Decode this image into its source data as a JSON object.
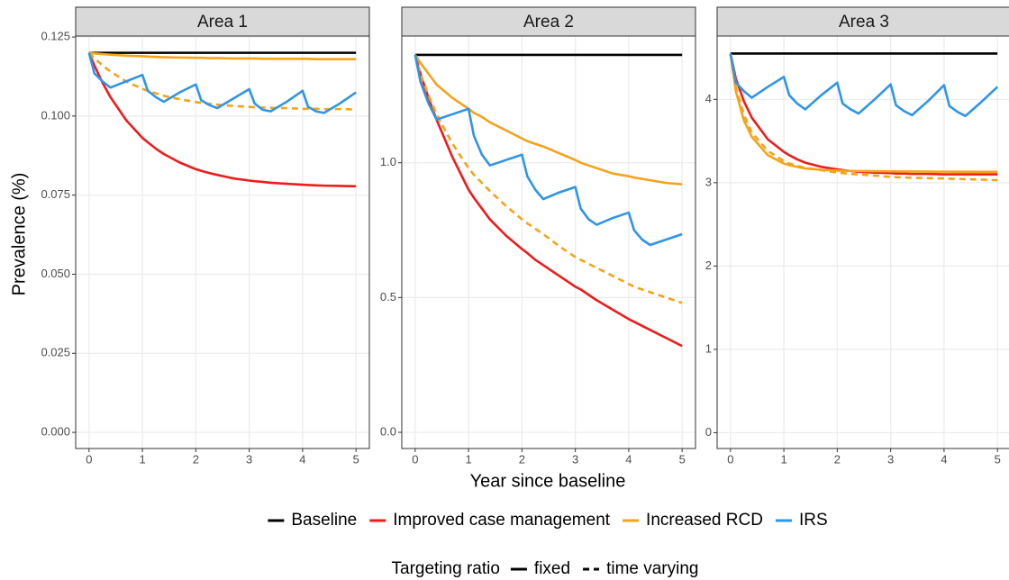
{
  "chart_data": [
    {
      "type": "line",
      "title": "Area 1",
      "x": [
        0,
        0.1,
        0.25,
        0.4,
        0.7,
        1,
        1.1,
        1.25,
        1.4,
        1.7,
        2,
        2.1,
        2.25,
        2.4,
        2.7,
        3,
        3.1,
        3.25,
        3.4,
        3.7,
        4,
        4.1,
        4.25,
        4.4,
        4.7,
        5
      ],
      "xlim": [
        -0.25,
        5.25
      ],
      "xticks": [
        0,
        1,
        2,
        3,
        4,
        5
      ],
      "ylim": [
        -0.0051,
        0.1253
      ],
      "yticks": [
        {
          "value": 0,
          "label": "0.000"
        },
        {
          "value": 0.025,
          "label": "0.025"
        },
        {
          "value": 0.05,
          "label": "0.050"
        },
        {
          "value": 0.075,
          "label": "0.075"
        },
        {
          "value": 0.1,
          "label": "0.100"
        },
        {
          "value": 0.125,
          "label": "0.125"
        }
      ],
      "grid": true,
      "series": [
        {
          "name": "Baseline",
          "linetype": "fixed",
          "color": "#000000",
          "values": [
            0.12,
            0.12,
            0.12,
            0.12,
            0.12,
            0.12,
            0.12,
            0.12,
            0.12,
            0.12,
            0.12,
            0.12,
            0.12,
            0.12,
            0.12,
            0.12,
            0.12,
            0.12,
            0.12,
            0.12,
            0.12,
            0.12,
            0.12,
            0.12,
            0.12,
            0.12
          ]
        },
        {
          "name": "Improved case management",
          "linetype": "fixed",
          "color": "#ee1c1c",
          "values": [
            0.12,
            0.116,
            0.1106,
            0.106,
            0.0986,
            0.0931,
            0.0917,
            0.0897,
            0.088,
            0.0853,
            0.0832,
            0.0827,
            0.082,
            0.0814,
            0.0803,
            0.0796,
            0.0794,
            0.0792,
            0.0789,
            0.0786,
            0.0783,
            0.0782,
            0.0781,
            0.078,
            0.0779,
            0.0778
          ]
        },
        {
          "name": "Increased RCD",
          "linetype": "fixed",
          "color": "#f5a319",
          "values": [
            0.12,
            0.1198,
            0.1196,
            0.1194,
            0.1191,
            0.1189,
            0.1188,
            0.1187,
            0.1186,
            0.1185,
            0.1184,
            0.1184,
            0.1183,
            0.1183,
            0.1182,
            0.1182,
            0.1182,
            0.1181,
            0.1181,
            0.1181,
            0.1181,
            0.1181,
            0.118,
            0.118,
            0.118,
            0.118
          ]
        },
        {
          "name": "Increased RCD",
          "linetype": "time varying",
          "color": "#f5a319",
          "values": [
            0.12,
            0.1183,
            0.116,
            0.1141,
            0.1109,
            0.1086,
            0.108,
            0.1072,
            0.1064,
            0.1053,
            0.1044,
            0.1042,
            0.1039,
            0.1036,
            0.1032,
            0.1029,
            0.1028,
            0.1027,
            0.1026,
            0.1025,
            0.1023,
            0.1023,
            0.1023,
            0.1022,
            0.1022,
            0.1021
          ]
        },
        {
          "name": "IRS",
          "linetype": "fixed",
          "color": "#2f95e8",
          "values": [
            0.12,
            0.1135,
            0.111,
            0.109,
            0.111,
            0.113,
            0.108,
            0.106,
            0.1045,
            0.1075,
            0.11,
            0.105,
            0.1035,
            0.1025,
            0.1055,
            0.1085,
            0.104,
            0.102,
            0.1015,
            0.1045,
            0.108,
            0.103,
            0.1015,
            0.101,
            0.104,
            0.1075
          ]
        }
      ]
    },
    {
      "type": "line",
      "title": "Area 2",
      "x": [
        0,
        0.1,
        0.25,
        0.4,
        0.7,
        1,
        1.1,
        1.25,
        1.4,
        1.7,
        2,
        2.1,
        2.25,
        2.4,
        2.7,
        3,
        3.1,
        3.25,
        3.4,
        3.7,
        4,
        4.1,
        4.25,
        4.4,
        4.7,
        5
      ],
      "xlim": [
        -0.25,
        5.25
      ],
      "xticks": [
        0,
        1,
        2,
        3,
        4,
        5
      ],
      "ylim": [
        -0.06,
        1.47
      ],
      "yticks": [
        {
          "value": 0,
          "label": "0.0"
        },
        0.5,
        {
          "value": 1,
          "label": "1.0"
        }
      ],
      "grid": true,
      "series": [
        {
          "name": "Baseline",
          "linetype": "fixed",
          "color": "#000000",
          "values": [
            1.4,
            1.4,
            1.4,
            1.4,
            1.4,
            1.4,
            1.4,
            1.4,
            1.4,
            1.4,
            1.4,
            1.4,
            1.4,
            1.4,
            1.4,
            1.4,
            1.4,
            1.4,
            1.4,
            1.4,
            1.4,
            1.4,
            1.4,
            1.4,
            1.4,
            1.4
          ]
        },
        {
          "name": "Improved case management",
          "linetype": "fixed",
          "color": "#ee1c1c",
          "values": [
            1.4,
            1.33,
            1.24,
            1.16,
            1.02,
            0.9,
            0.87,
            0.83,
            0.79,
            0.73,
            0.68,
            0.665,
            0.64,
            0.62,
            0.58,
            0.54,
            0.53,
            0.51,
            0.49,
            0.455,
            0.42,
            0.41,
            0.395,
            0.38,
            0.35,
            0.32
          ]
        },
        {
          "name": "Increased RCD",
          "linetype": "fixed",
          "color": "#f5a319",
          "values": [
            1.4,
            1.37,
            1.33,
            1.29,
            1.24,
            1.2,
            1.185,
            1.17,
            1.15,
            1.12,
            1.09,
            1.08,
            1.07,
            1.06,
            1.035,
            1.01,
            1.0,
            0.99,
            0.98,
            0.96,
            0.95,
            0.945,
            0.94,
            0.935,
            0.925,
            0.92
          ]
        },
        {
          "name": "Increased RCD",
          "linetype": "time varying",
          "color": "#f5a319",
          "values": [
            1.4,
            1.33,
            1.25,
            1.18,
            1.07,
            0.98,
            0.955,
            0.925,
            0.895,
            0.84,
            0.79,
            0.775,
            0.755,
            0.735,
            0.69,
            0.65,
            0.64,
            0.625,
            0.61,
            0.58,
            0.55,
            0.54,
            0.53,
            0.52,
            0.5,
            0.48
          ]
        },
        {
          "name": "IRS",
          "linetype": "fixed",
          "color": "#2f95e8",
          "values": [
            1.4,
            1.3,
            1.22,
            1.16,
            1.18,
            1.2,
            1.1,
            1.03,
            0.99,
            1.01,
            1.03,
            0.95,
            0.9,
            0.865,
            0.89,
            0.91,
            0.83,
            0.79,
            0.77,
            0.795,
            0.815,
            0.75,
            0.715,
            0.695,
            0.715,
            0.735
          ]
        }
      ]
    },
    {
      "type": "line",
      "title": "Area 3",
      "x": [
        0,
        0.1,
        0.25,
        0.4,
        0.7,
        1,
        1.1,
        1.25,
        1.4,
        1.7,
        2,
        2.1,
        2.25,
        2.4,
        2.7,
        3,
        3.1,
        3.25,
        3.4,
        3.7,
        4,
        4.1,
        4.25,
        4.4,
        4.7,
        5
      ],
      "xlim": [
        -0.25,
        5.25
      ],
      "xticks": [
        0,
        1,
        2,
        3,
        4,
        5
      ],
      "ylim": [
        -0.19,
        4.76
      ],
      "yticks": [
        0,
        1,
        2,
        3,
        4
      ],
      "grid": true,
      "series": [
        {
          "name": "Baseline",
          "linetype": "fixed",
          "color": "#000000",
          "values": [
            4.55,
            4.55,
            4.55,
            4.55,
            4.55,
            4.55,
            4.55,
            4.55,
            4.55,
            4.55,
            4.55,
            4.55,
            4.55,
            4.55,
            4.55,
            4.55,
            4.55,
            4.55,
            4.55,
            4.55,
            4.55,
            4.55,
            4.55,
            4.55,
            4.55,
            4.55
          ]
        },
        {
          "name": "Improved case management",
          "linetype": "fixed",
          "color": "#ee1c1c",
          "values": [
            4.55,
            4.25,
            3.98,
            3.78,
            3.52,
            3.37,
            3.33,
            3.28,
            3.24,
            3.19,
            3.16,
            3.15,
            3.14,
            3.13,
            3.12,
            3.115,
            3.11,
            3.11,
            3.105,
            3.105,
            3.1,
            3.1,
            3.1,
            3.1,
            3.1,
            3.1
          ]
        },
        {
          "name": "Increased RCD",
          "linetype": "fixed",
          "color": "#f5a319",
          "values": [
            4.55,
            4.1,
            3.75,
            3.55,
            3.33,
            3.23,
            3.21,
            3.19,
            3.17,
            3.155,
            3.145,
            3.143,
            3.141,
            3.14,
            3.138,
            3.136,
            3.135,
            3.134,
            3.134,
            3.133,
            3.132,
            3.132,
            3.131,
            3.131,
            3.13,
            3.13
          ]
        },
        {
          "name": "Increased RCD",
          "linetype": "time varying",
          "color": "#f5a319",
          "values": [
            4.55,
            4.15,
            3.82,
            3.6,
            3.38,
            3.26,
            3.23,
            3.2,
            3.18,
            3.15,
            3.12,
            3.115,
            3.105,
            3.1,
            3.085,
            3.07,
            3.067,
            3.063,
            3.06,
            3.055,
            3.05,
            3.048,
            3.045,
            3.042,
            3.036,
            3.03
          ]
        },
        {
          "name": "IRS",
          "linetype": "fixed",
          "color": "#2f95e8",
          "values": [
            4.55,
            4.2,
            4.1,
            4.02,
            4.15,
            4.27,
            4.05,
            3.95,
            3.88,
            4.05,
            4.2,
            3.95,
            3.88,
            3.83,
            4.0,
            4.18,
            3.93,
            3.86,
            3.81,
            3.98,
            4.17,
            3.92,
            3.85,
            3.8,
            3.97,
            4.15
          ]
        }
      ]
    }
  ],
  "x_label": "Year since baseline",
  "y_label": "Prevalence (%)",
  "legend": {
    "color": {
      "items": [
        {
          "name": "Baseline",
          "color": "#000000"
        },
        {
          "name": "Improved case management",
          "color": "#ee1c1c"
        },
        {
          "name": "Increased RCD",
          "color": "#f5a319"
        },
        {
          "name": "IRS",
          "color": "#2f95e8"
        }
      ]
    },
    "linetype": {
      "title": "Targeting ratio",
      "items": [
        {
          "name": "fixed",
          "linetype": "fixed"
        },
        {
          "name": "time varying",
          "linetype": "time varying"
        }
      ]
    }
  }
}
